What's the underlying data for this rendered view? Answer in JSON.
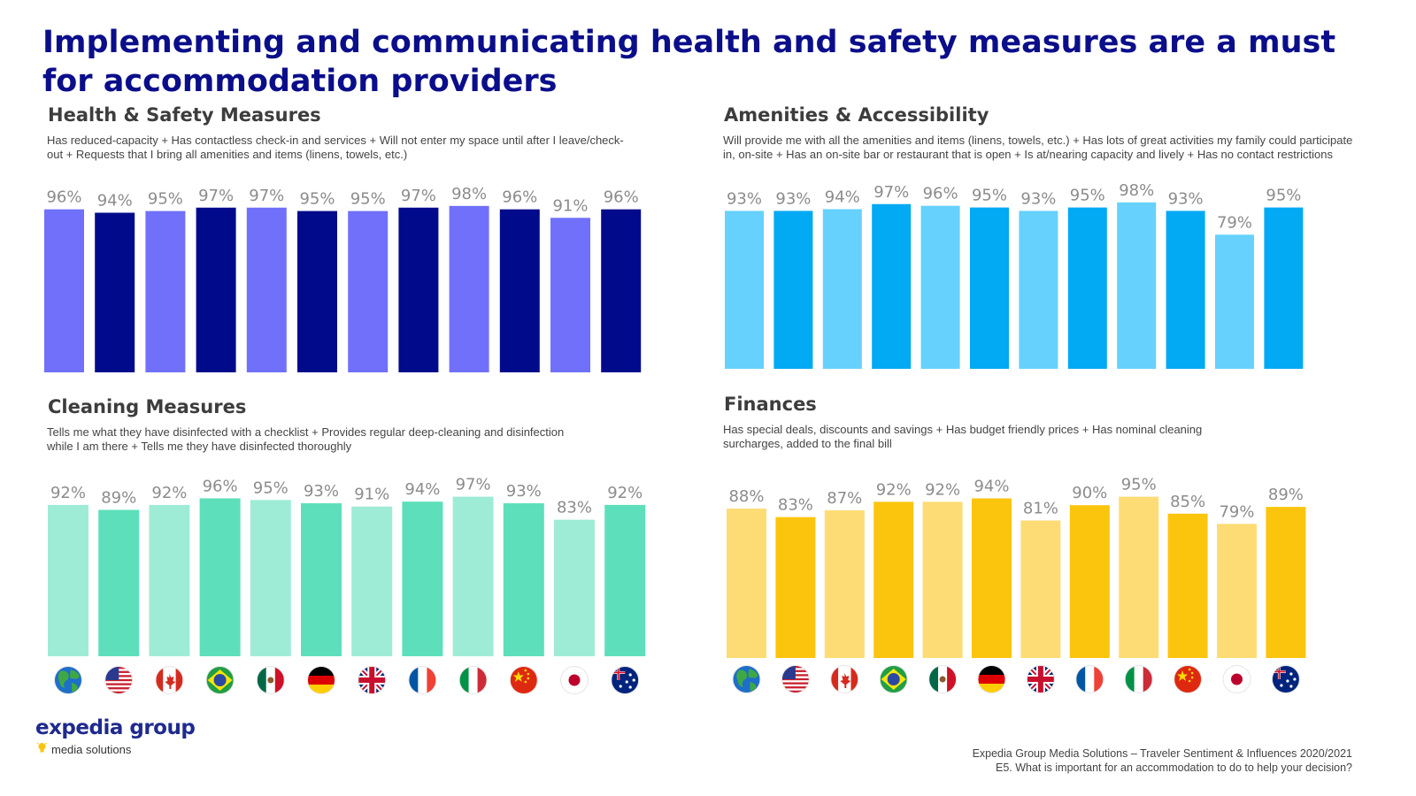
{
  "page": {
    "title": "Implementing and communicating health and safety measures are a must for accommodation providers"
  },
  "countries": [
    "Global",
    "United States",
    "Canada",
    "Brazil",
    "Mexico",
    "Germany",
    "United Kingdom",
    "France",
    "Italy",
    "China",
    "Japan",
    "Australia"
  ],
  "chart_data": [
    {
      "type": "bar",
      "title": "Health & Safety Measures",
      "subtitle": "Has reduced-capacity + Has contactless check-in and services + Will not enter my space until after I leave/check-out + Requests that I bring all amenities and items (linens, towels, etc.)",
      "values": [
        96,
        94,
        95,
        97,
        97,
        95,
        95,
        97,
        98,
        96,
        91,
        96
      ],
      "labels": [
        "96%",
        "94%",
        "95%",
        "97%",
        "97%",
        "95%",
        "95%",
        "97%",
        "98%",
        "96%",
        "91%",
        "96%"
      ],
      "ylim": [
        0,
        100
      ],
      "colors": {
        "light": "#7070fa",
        "dark": "#020a8c"
      }
    },
    {
      "type": "bar",
      "title": "Amenities & Accessibility",
      "subtitle": "Will provide me with all the amenities and items (linens, towels, etc.) + Has lots of great activities my family could participate in, on-site + Has an on-site bar or restaurant that is open + Is at/nearing capacity and lively + Has no contact restrictions",
      "values": [
        93,
        93,
        94,
        97,
        96,
        95,
        93,
        95,
        98,
        93,
        79,
        95
      ],
      "labels": [
        "93%",
        "93%",
        "94%",
        "97%",
        "96%",
        "95%",
        "93%",
        "95%",
        "98%",
        "93%",
        "79%",
        "95%"
      ],
      "ylim": [
        0,
        100
      ],
      "colors": {
        "light": "#66d1fc",
        "dark": "#02a9f3"
      }
    },
    {
      "type": "bar",
      "title": "Cleaning Measures",
      "subtitle": "Tells me what they have disinfected with a checklist + Provides regular deep-cleaning and disinfection while I am there + Tells me they have disinfected thoroughly",
      "values": [
        92,
        89,
        92,
        96,
        95,
        93,
        91,
        94,
        97,
        93,
        83,
        92
      ],
      "labels": [
        "92%",
        "89%",
        "92%",
        "96%",
        "95%",
        "93%",
        "91%",
        "94%",
        "97%",
        "93%",
        "83%",
        "92%"
      ],
      "ylim": [
        0,
        100
      ],
      "colors": {
        "light": "#9fecd6",
        "dark": "#5ddfbb"
      }
    },
    {
      "type": "bar",
      "title": "Finances",
      "subtitle": "Has special deals, discounts and savings + Has budget friendly prices + Has nominal cleaning surcharges, added to the final bill",
      "values": [
        88,
        83,
        87,
        92,
        92,
        94,
        81,
        90,
        95,
        85,
        79,
        89
      ],
      "labels": [
        "88%",
        "83%",
        "87%",
        "92%",
        "92%",
        "94%",
        "81%",
        "90%",
        "95%",
        "85%",
        "79%",
        "89%"
      ],
      "ylim": [
        0,
        100
      ],
      "colors": {
        "light": "#fddc75",
        "dark": "#fcc50d"
      }
    }
  ],
  "flags": [
    {
      "country": "Global",
      "icon": "globe-icon"
    },
    {
      "country": "United States",
      "icon": "us-flag-icon"
    },
    {
      "country": "Canada",
      "icon": "canada-flag-icon"
    },
    {
      "country": "Brazil",
      "icon": "brazil-flag-icon"
    },
    {
      "country": "Mexico",
      "icon": "mexico-flag-icon"
    },
    {
      "country": "Germany",
      "icon": "germany-flag-icon"
    },
    {
      "country": "United Kingdom",
      "icon": "uk-flag-icon"
    },
    {
      "country": "France",
      "icon": "france-flag-icon"
    },
    {
      "country": "Italy",
      "icon": "italy-flag-icon"
    },
    {
      "country": "China",
      "icon": "china-flag-icon"
    },
    {
      "country": "Japan",
      "icon": "japan-flag-icon"
    },
    {
      "country": "Australia",
      "icon": "australia-flag-icon"
    }
  ],
  "logo": {
    "brand": "expedia group",
    "tagline": "media solutions",
    "icon": "lightbulb-icon",
    "brand_color": "#1f2a8f"
  },
  "source": {
    "line1": "Expedia Group Media Solutions – Traveler Sentiment & Influences 2020/2021",
    "line2": "E5. What is important for an accommodation to do to help your decision?"
  }
}
